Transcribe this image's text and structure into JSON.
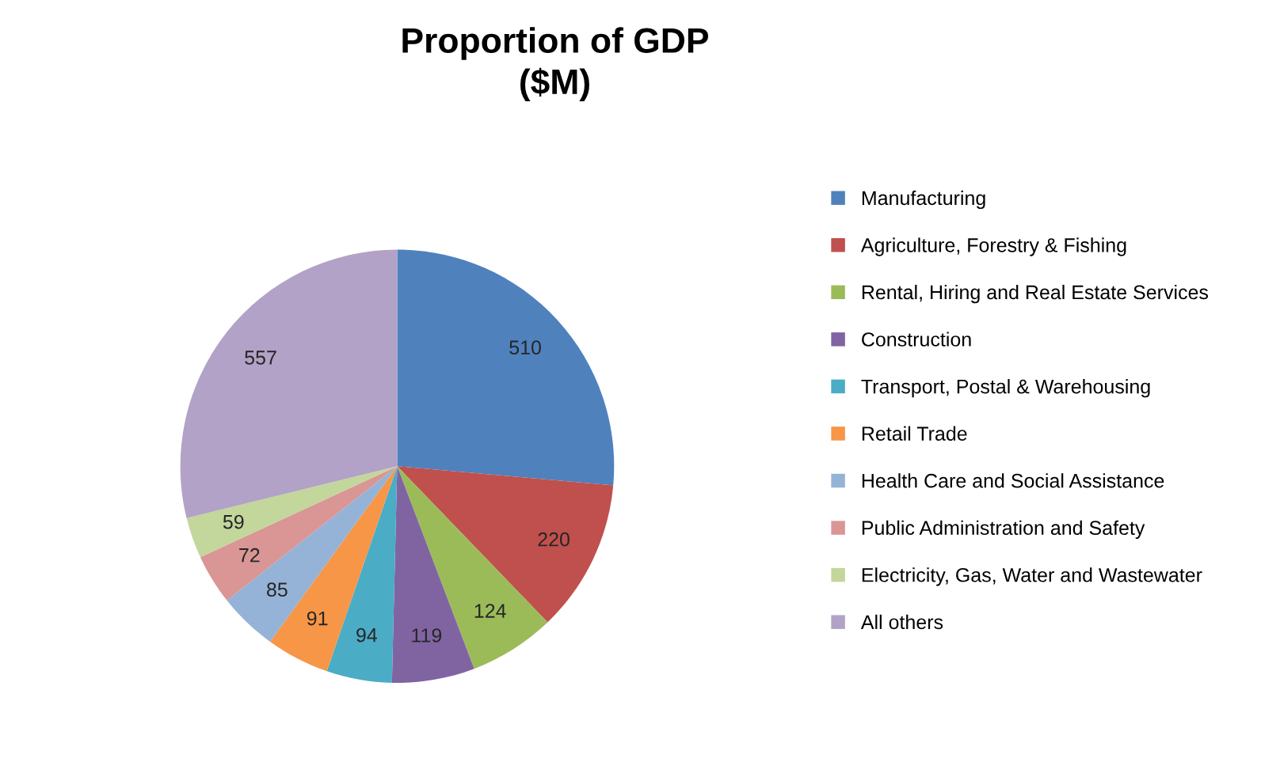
{
  "chart_data": {
    "type": "pie",
    "title": "Proportion of GDP\n($M)",
    "categories": [
      "Manufacturing",
      "Agriculture, Forestry & Fishing",
      "Rental, Hiring and Real Estate Services",
      "Construction",
      "Transport, Postal & Warehousing",
      "Retail Trade",
      "Health Care and Social Assistance",
      "Public Administration and Safety",
      "Electricity, Gas, Water and Wastewater",
      "All others"
    ],
    "values": [
      510,
      220,
      124,
      119,
      94,
      91,
      85,
      72,
      59,
      557
    ],
    "colors": [
      "#4f81bd",
      "#c0504d",
      "#9bbb59",
      "#8064a2",
      "#4bacc6",
      "#f79646",
      "#95b3d7",
      "#d99694",
      "#c3d69b",
      "#b2a2c7"
    ],
    "data_labels": true,
    "legend": "right"
  }
}
